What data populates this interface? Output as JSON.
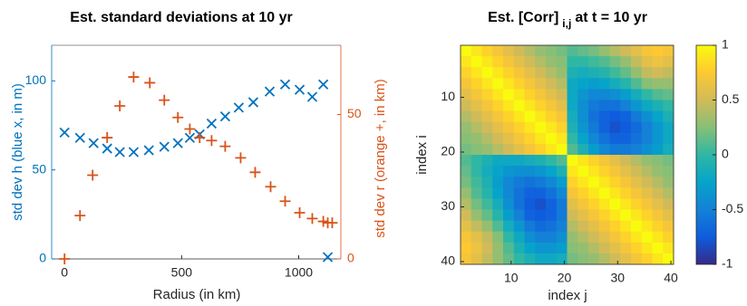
{
  "chart_data": [
    {
      "type": "scatter",
      "title": "Est. standard deviations at 10 yr",
      "xlabel": "Radius (in km)",
      "ylabel": "std dev h (blue x, in m)",
      "y2label": "std dev r (orange +, in km)",
      "xlim": [
        -55,
        1180
      ],
      "xticks": [
        0,
        500,
        1000
      ],
      "ylim": [
        0,
        120
      ],
      "yticks": [
        0,
        50,
        100
      ],
      "y2lim": [
        0,
        74
      ],
      "y2ticks": [
        0,
        50
      ],
      "ycolor": "#0072bd",
      "y2color": "#d95319",
      "series": [
        {
          "color": "#0072bd",
          "marker": "x",
          "x": [
            0,
            66,
            124,
            182,
            236,
            295,
            360,
            426,
            484,
            535,
            577,
            628,
            686,
            744,
            806,
            876,
            942,
            1004,
            1058,
            1105,
            1124
          ],
          "values": [
            71,
            68,
            65,
            62,
            60,
            60,
            61,
            63,
            65,
            68,
            70,
            76,
            80,
            85,
            88,
            94,
            98,
            95,
            91,
            98,
            1
          ]
        },
        {
          "color": "#d95319",
          "marker": "+",
          "axis": "y2",
          "x": [
            0,
            66,
            120,
            182,
            236,
            295,
            364,
            426,
            484,
            535,
            577,
            628,
            686,
            752,
            814,
            880,
            942,
            1004,
            1058,
            1105,
            1124,
            1143
          ],
          "values": [
            0,
            15,
            29,
            42,
            53,
            63,
            61,
            55,
            49,
            45,
            42,
            41,
            39,
            35,
            30,
            25,
            20,
            16,
            14,
            13,
            12.5,
            12.5
          ]
        }
      ]
    },
    {
      "type": "heatmap",
      "title": "Est. [Corr]",
      "title_subscript": "i,j",
      "title_suffix": "at t = 10 yr",
      "xlabel": "index j",
      "ylabel": "index i",
      "xlim": [
        0.5,
        40.5
      ],
      "xticks": [
        10,
        20,
        30,
        40
      ],
      "ylim": [
        0.5,
        40.5
      ],
      "yticks": [
        10,
        20,
        30,
        40
      ],
      "y_reversed": true,
      "clim": [
        -1,
        1
      ],
      "cticks": [
        -1,
        -0.5,
        0,
        0.5,
        1
      ],
      "colormap": [
        "#352a87",
        "#0f5cdd",
        "#1481d6",
        "#06a4ca",
        "#2eb7a4",
        "#87bf77",
        "#d1bb59",
        "#fec832",
        "#f9fb0e"
      ],
      "x": [
        1.5,
        3.5,
        5.5,
        7.5,
        9.5,
        11.5,
        13.5,
        15.5,
        17.5,
        19.5,
        21.5,
        23.5,
        25.5,
        27.5,
        29.5,
        31.5,
        33.5,
        35.5,
        37.5,
        39.5
      ],
      "y": [
        1.5,
        3.5,
        5.5,
        7.5,
        9.5,
        11.5,
        13.5,
        15.5,
        17.5,
        19.5,
        21.5,
        23.5,
        25.5,
        27.5,
        29.5,
        31.5,
        33.5,
        35.5,
        37.5,
        39.5
      ],
      "values": [
        [
          1,
          0.9,
          0.8,
          0.7,
          0.6,
          0.5,
          0.4,
          0.3,
          0.25,
          0.2,
          0.1,
          0.15,
          0.2,
          0.3,
          0.4,
          0.5,
          0.6,
          0.7,
          0.75,
          0.7
        ],
        [
          0.9,
          1,
          0.9,
          0.8,
          0.7,
          0.6,
          0.5,
          0.4,
          0.3,
          0.25,
          0,
          0,
          0.05,
          0.1,
          0.2,
          0.3,
          0.45,
          0.6,
          0.65,
          0.6
        ],
        [
          0.8,
          0.9,
          1,
          0.9,
          0.8,
          0.7,
          0.6,
          0.5,
          0.4,
          0.3,
          -0.1,
          -0.15,
          -0.1,
          -0.05,
          0.05,
          0.15,
          0.3,
          0.45,
          0.5,
          0.45
        ],
        [
          0.7,
          0.8,
          0.9,
          1,
          0.9,
          0.8,
          0.7,
          0.6,
          0.5,
          0.4,
          -0.2,
          -0.25,
          -0.3,
          -0.25,
          -0.15,
          -0.05,
          0.1,
          0.25,
          0.3,
          0.3
        ],
        [
          0.6,
          0.7,
          0.8,
          0.9,
          1,
          0.9,
          0.8,
          0.7,
          0.6,
          0.5,
          -0.2,
          -0.35,
          -0.45,
          -0.45,
          -0.4,
          -0.3,
          -0.15,
          0,
          0.1,
          0.15
        ],
        [
          0.5,
          0.6,
          0.7,
          0.8,
          0.9,
          1,
          0.9,
          0.8,
          0.7,
          0.6,
          -0.2,
          -0.4,
          -0.55,
          -0.6,
          -0.6,
          -0.5,
          -0.35,
          -0.2,
          -0.1,
          0
        ],
        [
          0.4,
          0.5,
          0.6,
          0.7,
          0.8,
          0.9,
          1,
          0.9,
          0.8,
          0.7,
          -0.15,
          -0.4,
          -0.6,
          -0.7,
          -0.75,
          -0.7,
          -0.55,
          -0.4,
          -0.25,
          -0.1
        ],
        [
          0.3,
          0.4,
          0.5,
          0.6,
          0.7,
          0.8,
          0.9,
          1,
          0.9,
          0.8,
          -0.1,
          -0.35,
          -0.55,
          -0.7,
          -0.8,
          -0.75,
          -0.65,
          -0.5,
          -0.35,
          -0.2
        ],
        [
          0.25,
          0.3,
          0.4,
          0.5,
          0.6,
          0.7,
          0.8,
          0.9,
          1,
          0.9,
          0,
          -0.25,
          -0.45,
          -0.6,
          -0.7,
          -0.7,
          -0.6,
          -0.5,
          -0.35,
          -0.2
        ],
        [
          0.2,
          0.25,
          0.3,
          0.4,
          0.5,
          0.6,
          0.7,
          0.8,
          0.9,
          1,
          0.1,
          -0.1,
          -0.3,
          -0.45,
          -0.55,
          -0.55,
          -0.5,
          -0.4,
          -0.3,
          -0.15
        ],
        [
          0.1,
          0,
          -0.1,
          -0.2,
          -0.2,
          -0.2,
          -0.15,
          -0.1,
          0,
          0.1,
          1,
          0.9,
          0.8,
          0.7,
          0.6,
          0.5,
          0.4,
          0.3,
          0.25,
          0.2
        ],
        [
          0.15,
          0,
          -0.15,
          -0.25,
          -0.35,
          -0.4,
          -0.4,
          -0.35,
          -0.25,
          -0.1,
          0.9,
          1,
          0.9,
          0.8,
          0.7,
          0.6,
          0.5,
          0.4,
          0.3,
          0.25
        ],
        [
          0.2,
          0.05,
          -0.1,
          -0.3,
          -0.45,
          -0.55,
          -0.6,
          -0.55,
          -0.45,
          -0.3,
          0.8,
          0.9,
          1,
          0.9,
          0.8,
          0.7,
          0.6,
          0.5,
          0.4,
          0.3
        ],
        [
          0.3,
          0.1,
          -0.05,
          -0.25,
          -0.45,
          -0.6,
          -0.7,
          -0.7,
          -0.6,
          -0.45,
          0.7,
          0.8,
          0.9,
          1,
          0.9,
          0.8,
          0.7,
          0.6,
          0.5,
          0.4
        ],
        [
          0.4,
          0.2,
          0.05,
          -0.15,
          -0.4,
          -0.6,
          -0.75,
          -0.8,
          -0.7,
          -0.55,
          0.6,
          0.7,
          0.8,
          0.9,
          1,
          0.9,
          0.8,
          0.7,
          0.6,
          0.5
        ],
        [
          0.5,
          0.3,
          0.15,
          -0.05,
          -0.3,
          -0.5,
          -0.7,
          -0.75,
          -0.7,
          -0.55,
          0.5,
          0.6,
          0.7,
          0.8,
          0.9,
          1,
          0.9,
          0.8,
          0.7,
          0.6
        ],
        [
          0.6,
          0.45,
          0.3,
          0.1,
          -0.15,
          -0.35,
          -0.55,
          -0.65,
          -0.6,
          -0.5,
          0.4,
          0.5,
          0.6,
          0.7,
          0.8,
          0.9,
          1,
          0.9,
          0.8,
          0.7
        ],
        [
          0.7,
          0.6,
          0.45,
          0.25,
          0,
          -0.2,
          -0.4,
          -0.5,
          -0.5,
          -0.4,
          0.3,
          0.4,
          0.5,
          0.6,
          0.7,
          0.8,
          0.9,
          1,
          0.9,
          0.8
        ],
        [
          0.75,
          0.65,
          0.5,
          0.3,
          0.1,
          -0.1,
          -0.25,
          -0.35,
          -0.35,
          -0.3,
          0.25,
          0.3,
          0.4,
          0.5,
          0.6,
          0.7,
          0.8,
          0.9,
          1,
          0.9
        ],
        [
          0.7,
          0.6,
          0.45,
          0.3,
          0.15,
          0,
          -0.1,
          -0.2,
          -0.2,
          -0.15,
          0.2,
          0.25,
          0.3,
          0.4,
          0.5,
          0.6,
          0.7,
          0.8,
          0.9,
          1
        ]
      ]
    }
  ]
}
